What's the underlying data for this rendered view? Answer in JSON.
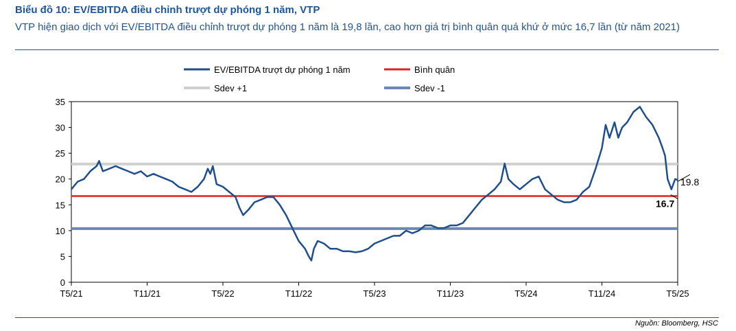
{
  "header": {
    "title": "Biểu đồ 10: EV/EBITDA điều chỉnh trượt dự phóng 1 năm, VTP",
    "subtitle": "VTP hiện giao dịch với EV/EBITDA điều chỉnh trượt dự phóng 1 năm là 19,8 lần, cao hơn giá trị bình quân quá khứ ở mức 16,7 lần (từ năm 2021)"
  },
  "source": "Nguồn: Bloomberg, HSC",
  "chart_data": {
    "type": "line",
    "title": "Biểu đồ 10: EV/EBITDA điều chỉnh trượt dự phóng 1 năm, VTP",
    "xlabel": "",
    "ylabel": "",
    "ylim": [
      0,
      35
    ],
    "yticks": [
      0,
      5,
      10,
      15,
      20,
      25,
      30,
      35
    ],
    "xlim": [
      0,
      48
    ],
    "xticks": [
      {
        "x": 0,
        "label": "T5/21"
      },
      {
        "x": 6,
        "label": "T11/21"
      },
      {
        "x": 12,
        "label": "T5/22"
      },
      {
        "x": 18,
        "label": "T11/22"
      },
      {
        "x": 24,
        "label": "T5/23"
      },
      {
        "x": 30,
        "label": "T11/23"
      },
      {
        "x": 36,
        "label": "T5/24"
      },
      {
        "x": 42,
        "label": "T11/24"
      },
      {
        "x": 48,
        "label": "T5/25"
      }
    ],
    "legend_position": "top",
    "series": [
      {
        "name": "EV/EBITDA trượt dự phóng 1 năm",
        "color": "#1f4e8c",
        "points": [
          [
            0,
            18
          ],
          [
            0.5,
            19.5
          ],
          [
            1,
            20
          ],
          [
            1.5,
            21.5
          ],
          [
            2,
            22.5
          ],
          [
            2.2,
            23.5
          ],
          [
            2.5,
            21.5
          ],
          [
            3,
            22
          ],
          [
            3.5,
            22.5
          ],
          [
            4,
            22
          ],
          [
            4.5,
            21.5
          ],
          [
            5,
            21
          ],
          [
            5.5,
            21.5
          ],
          [
            6,
            20.5
          ],
          [
            6.5,
            21
          ],
          [
            7,
            20.5
          ],
          [
            7.5,
            20
          ],
          [
            8,
            19.5
          ],
          [
            8.5,
            18.5
          ],
          [
            9,
            18
          ],
          [
            9.5,
            17.5
          ],
          [
            10,
            18.5
          ],
          [
            10.5,
            20
          ],
          [
            10.8,
            22
          ],
          [
            11,
            21
          ],
          [
            11.2,
            22.5
          ],
          [
            11.5,
            19
          ],
          [
            12,
            18.5
          ],
          [
            12.5,
            17.5
          ],
          [
            13,
            16.5
          ],
          [
            13.3,
            14.5
          ],
          [
            13.6,
            13
          ],
          [
            14,
            14
          ],
          [
            14.5,
            15.5
          ],
          [
            15,
            16
          ],
          [
            15.5,
            16.5
          ],
          [
            16,
            16.5
          ],
          [
            16.5,
            15
          ],
          [
            17,
            13
          ],
          [
            17.3,
            11.5
          ],
          [
            17.6,
            10
          ],
          [
            18,
            8
          ],
          [
            18.5,
            6.5
          ],
          [
            18.8,
            5
          ],
          [
            19,
            4.2
          ],
          [
            19.2,
            6.5
          ],
          [
            19.5,
            8
          ],
          [
            20,
            7.5
          ],
          [
            20.5,
            6.5
          ],
          [
            21,
            6.5
          ],
          [
            21.5,
            6
          ],
          [
            22,
            6
          ],
          [
            22.5,
            5.8
          ],
          [
            23,
            6
          ],
          [
            23.5,
            6.5
          ],
          [
            24,
            7.5
          ],
          [
            24.5,
            8
          ],
          [
            25,
            8.5
          ],
          [
            25.5,
            9
          ],
          [
            26,
            9
          ],
          [
            26.5,
            10
          ],
          [
            27,
            9.5
          ],
          [
            27.5,
            10
          ],
          [
            28,
            11
          ],
          [
            28.5,
            11
          ],
          [
            29,
            10.5
          ],
          [
            29.5,
            10.5
          ],
          [
            30,
            11
          ],
          [
            30.5,
            11
          ],
          [
            31,
            11.5
          ],
          [
            31.5,
            13
          ],
          [
            32,
            14.5
          ],
          [
            32.5,
            16
          ],
          [
            33,
            17
          ],
          [
            33.5,
            18
          ],
          [
            34,
            19.5
          ],
          [
            34.3,
            23
          ],
          [
            34.6,
            20
          ],
          [
            35,
            19
          ],
          [
            35.5,
            18
          ],
          [
            36,
            19
          ],
          [
            36.5,
            20
          ],
          [
            37,
            20.5
          ],
          [
            37.5,
            18
          ],
          [
            38,
            17
          ],
          [
            38.5,
            16
          ],
          [
            39,
            15.5
          ],
          [
            39.5,
            15.5
          ],
          [
            40,
            16
          ],
          [
            40.5,
            17.5
          ],
          [
            41,
            18.5
          ],
          [
            41.5,
            22
          ],
          [
            42,
            26
          ],
          [
            42.3,
            30.5
          ],
          [
            42.6,
            28
          ],
          [
            43,
            31
          ],
          [
            43.3,
            28
          ],
          [
            43.6,
            30
          ],
          [
            44,
            31
          ],
          [
            44.5,
            33
          ],
          [
            45,
            34
          ],
          [
            45.5,
            32
          ],
          [
            46,
            30.5
          ],
          [
            46.5,
            28
          ],
          [
            46.8,
            26
          ],
          [
            47,
            24.5
          ],
          [
            47.2,
            20
          ],
          [
            47.5,
            18
          ],
          [
            47.8,
            20
          ],
          [
            48,
            19.8
          ]
        ]
      },
      {
        "name": "Bình quân",
        "color": "#e02020",
        "value": 16.7
      },
      {
        "name": "Sdev +1",
        "color": "#d0d0d0",
        "value": 22.9
      },
      {
        "name": "Sdev -1",
        "color": "#6a87b5",
        "value": 10.4
      }
    ],
    "annotations": [
      {
        "text": "19.8",
        "x": 48,
        "y": 19.8
      },
      {
        "text": "16.7",
        "x": 48,
        "y": 16.7
      }
    ]
  }
}
